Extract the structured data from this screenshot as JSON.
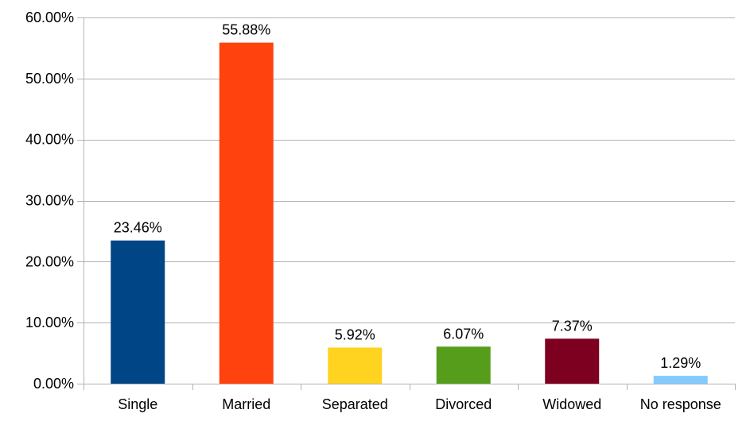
{
  "chart_data": {
    "type": "bar",
    "categories": [
      "Single",
      "Married",
      "Separated",
      "Divorced",
      "Widowed",
      "No response"
    ],
    "values": [
      23.46,
      55.88,
      5.92,
      6.07,
      7.37,
      1.29
    ],
    "data_labels": [
      "23.46%",
      "55.88%",
      "5.92%",
      "6.07%",
      "7.37%",
      "1.29%"
    ],
    "colors": [
      "#004586",
      "#ff420e",
      "#ffd320",
      "#579d1c",
      "#7e0021",
      "#83caff"
    ],
    "y_ticks": [
      0,
      10,
      20,
      30,
      40,
      50,
      60
    ],
    "y_tick_labels": [
      "0.00%",
      "10.00%",
      "20.00%",
      "30.00%",
      "40.00%",
      "50.00%",
      "60.00%"
    ],
    "ylim": [
      0,
      60
    ],
    "grid": true,
    "legend": "none",
    "title": "",
    "xlabel": "",
    "ylabel": ""
  }
}
